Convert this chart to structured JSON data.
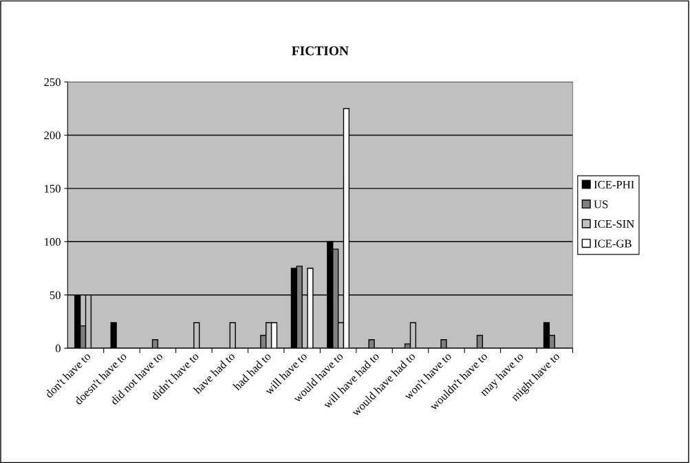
{
  "chart_data": {
    "type": "bar",
    "title": "FICTION",
    "categories": [
      "don't have to",
      "doesn't have to",
      "did not have to",
      "didn't have to",
      "have had to",
      "had had to",
      "will have to",
      "would have to",
      "will have had to",
      "would have had to",
      "won't have to",
      "wouldn't have to",
      "may have to",
      "might have to"
    ],
    "series": [
      {
        "name": "ICE-PHI",
        "color": "#000000",
        "values": [
          50,
          24,
          null,
          null,
          null,
          null,
          75,
          100,
          null,
          null,
          null,
          null,
          null,
          24
        ]
      },
      {
        "name": "US",
        "color": "#808080",
        "values": [
          21,
          null,
          8,
          null,
          null,
          12,
          77,
          93,
          8,
          4,
          8,
          12,
          null,
          12
        ]
      },
      {
        "name": "ICE-SIN",
        "color": "#c0c0c0",
        "values": [
          50,
          null,
          null,
          24,
          24,
          24,
          null,
          24,
          null,
          24,
          null,
          null,
          null,
          null
        ]
      },
      {
        "name": "ICE-GB",
        "color": "#ffffff",
        "values": [
          null,
          null,
          null,
          null,
          null,
          24,
          75,
          225,
          null,
          null,
          null,
          null,
          null,
          null
        ]
      }
    ],
    "ylim": [
      0,
      250
    ],
    "yticks": [
      0,
      50,
      100,
      150,
      200,
      250
    ],
    "grid": "y",
    "legend": "right"
  }
}
